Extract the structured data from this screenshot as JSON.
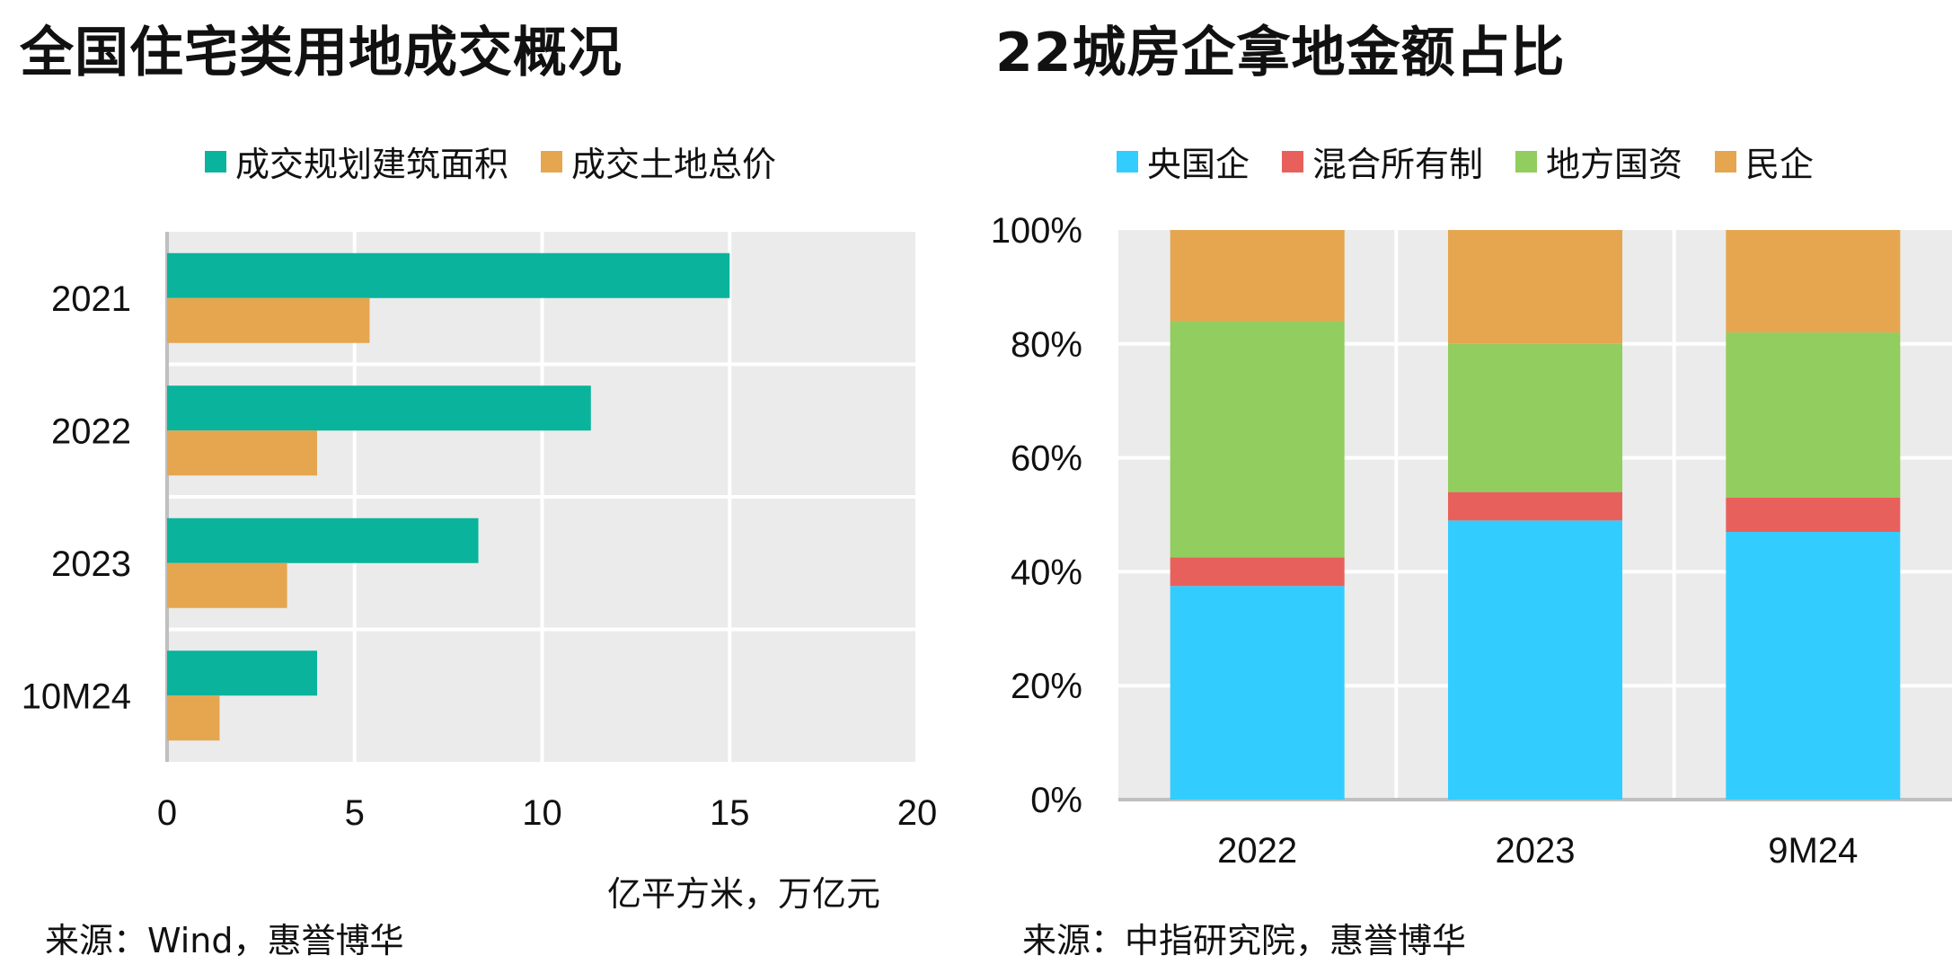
{
  "left": {
    "title": "全国住宅类用地成交概况",
    "legend": [
      {
        "label": "成交规划建筑面积",
        "color": "#0ab39c"
      },
      {
        "label": "成交土地总价",
        "color": "#e5a64f"
      }
    ],
    "unit_note": "亿平方米，万亿元",
    "source": "来源：Wind，惠誉博华"
  },
  "right": {
    "title": "22城房企拿地金额占比",
    "legend": [
      {
        "label": "央国企",
        "color": "#33ccff"
      },
      {
        "label": "混合所有制",
        "color": "#e8605c"
      },
      {
        "label": "地方国资",
        "color": "#92cd5f"
      },
      {
        "label": "民企",
        "color": "#e5a64f"
      }
    ],
    "source": "来源：中指研究院，惠誉博华"
  },
  "chart_data": [
    {
      "type": "bar",
      "orientation": "horizontal",
      "title": "全国住宅类用地成交概况",
      "categories": [
        "2021",
        "2022",
        "2023",
        "10M24"
      ],
      "series": [
        {
          "name": "成交规划建筑面积",
          "values": [
            15.0,
            11.3,
            8.3,
            4.0
          ],
          "color": "#0ab39c"
        },
        {
          "name": "成交土地总价",
          "values": [
            5.4,
            4.0,
            3.2,
            1.4
          ],
          "color": "#e5a64f"
        }
      ],
      "xlim": [
        0,
        20
      ],
      "xticks": [
        "0",
        "5",
        "10",
        "15",
        "20"
      ],
      "xlabel": "亿平方米，万亿元",
      "grid": true,
      "legend_position": "top"
    },
    {
      "type": "bar",
      "stacked": true,
      "title": "22城房企拿地金额占比",
      "categories": [
        "2022",
        "2023",
        "9M24"
      ],
      "series": [
        {
          "name": "央国企",
          "values": [
            37.5,
            49,
            47
          ],
          "color": "#33ccff"
        },
        {
          "name": "混合所有制",
          "values": [
            5,
            5,
            6
          ],
          "color": "#e8605c"
        },
        {
          "name": "地方国资",
          "values": [
            41.5,
            26,
            29
          ],
          "color": "#92cd5f"
        },
        {
          "name": "民企",
          "values": [
            16,
            20,
            18
          ],
          "color": "#e5a64f"
        }
      ],
      "ylim": [
        0,
        100
      ],
      "yticks": [
        "0%",
        "20%",
        "40%",
        "60%",
        "80%",
        "100%"
      ],
      "grid": true,
      "legend_position": "top"
    }
  ]
}
